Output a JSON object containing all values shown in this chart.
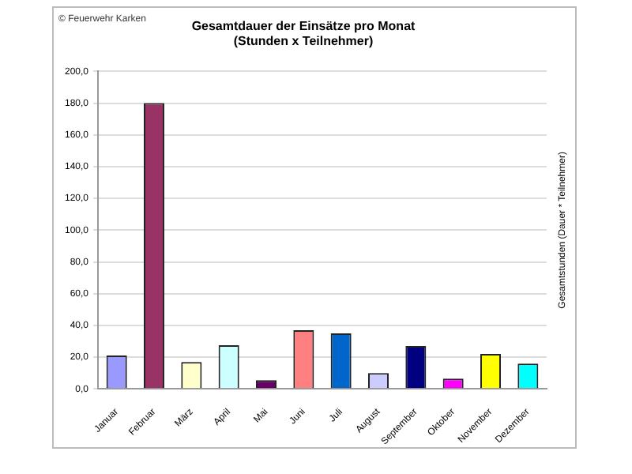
{
  "chart_data": {
    "type": "bar",
    "title": [
      "Gesamtdauer der Einsätze pro Monat",
      "(Stunden x Teilnehmer)"
    ],
    "ylabel": "Gesamtstunden (Dauer * Teilnehmer)",
    "annotations": [
      "© Feuerwehr Karken"
    ],
    "categories": [
      "Januar",
      "Februar",
      "März",
      "April",
      "Mai",
      "Juni",
      "Juli",
      "August",
      "September",
      "Oktober",
      "November",
      "Dezember"
    ],
    "values": [
      21,
      180,
      17,
      27.5,
      5.5,
      37,
      35,
      10,
      27,
      6.5,
      22,
      16
    ],
    "colors": [
      "#9999ff",
      "#993366",
      "#ffffcc",
      "#ccffff",
      "#660066",
      "#ff8080",
      "#0066cc",
      "#ccccff",
      "#000080",
      "#ff00ff",
      "#ffff00",
      "#00ffff"
    ],
    "ylim": [
      0,
      200
    ],
    "yticks": [
      {
        "value": 0,
        "label": "0,0"
      },
      {
        "value": 20,
        "label": "20,0"
      },
      {
        "value": 40,
        "label": "40,0"
      },
      {
        "value": 60,
        "label": "60,0"
      },
      {
        "value": 80,
        "label": "80,0"
      },
      {
        "value": 100,
        "label": "100,0"
      },
      {
        "value": 120,
        "label": "120,0"
      },
      {
        "value": 140,
        "label": "140,0"
      },
      {
        "value": 160,
        "label": "160,0"
      },
      {
        "value": 180,
        "label": "180,0"
      },
      {
        "value": 200,
        "label": "200,0"
      }
    ],
    "grid": "y",
    "legend": false
  }
}
